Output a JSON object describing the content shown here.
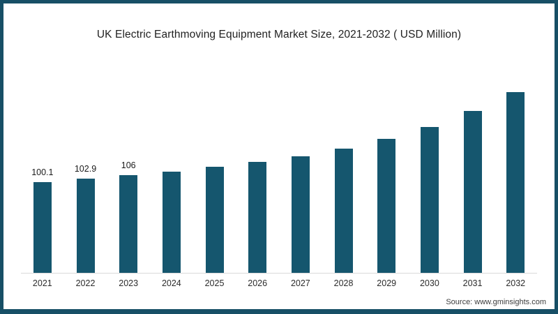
{
  "chart_data": {
    "type": "bar",
    "title": "UK Electric Earthmoving Equipment Market Size, 2021-2032 ( USD Million)",
    "categories": [
      "2021",
      "2022",
      "2023",
      "2024",
      "2025",
      "2026",
      "2027",
      "2028",
      "2029",
      "2030",
      "2031",
      "2032"
    ],
    "values": [
      100.1,
      102.9,
      106,
      109.1,
      113.5,
      117.9,
      122.9,
      129.9,
      138.2,
      149.1,
      163.1,
      179.9
    ],
    "data_labels": [
      "100.1",
      "102.9",
      "106",
      "",
      "",
      "",
      "",
      "",
      "",
      "",
      "",
      ""
    ],
    "xlabel": "",
    "ylabel": "",
    "ylim": [
      19.1,
      200
    ],
    "grid": false,
    "legend": false,
    "bar_color": "#15566E",
    "axis_line_color": "#d9d9d9"
  },
  "frame": {
    "border_color": "#174F66"
  },
  "footer": {
    "source": "Source: www.gminsights.com"
  }
}
